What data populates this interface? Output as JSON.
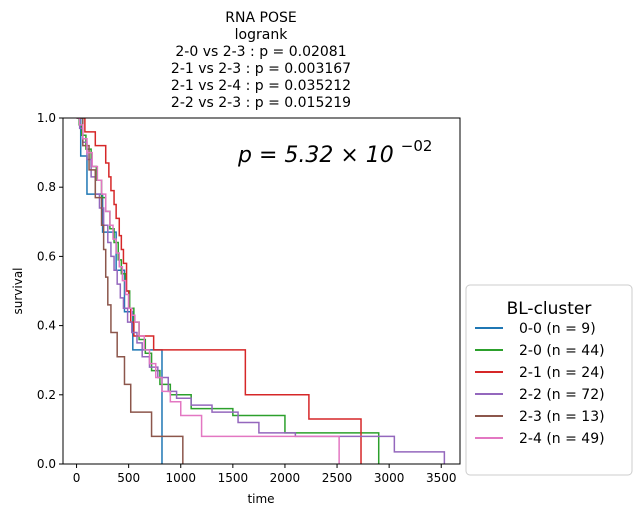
{
  "chart_data": {
    "type": "line",
    "title_lines": [
      "RNA POSE",
      "logrank",
      "2-0 vs 2-3 :  p = 0.02081",
      "2-1 vs 2-3 :  p = 0.003167",
      "2-1 vs 2-4 :  p = 0.035212",
      "2-2 vs 2-3 :  p = 0.015219"
    ],
    "annotation": {
      "base": "p = 5.32 × 10",
      "exponent": "−02"
    },
    "xlabel": "time",
    "ylabel": "survival",
    "xlim": [
      -130,
      3680
    ],
    "ylim": [
      0,
      1
    ],
    "xticks": [
      0,
      500,
      1000,
      1500,
      2000,
      2500,
      3000,
      3500
    ],
    "yticks": [
      0.0,
      0.2,
      0.4,
      0.6,
      0.8,
      1.0
    ],
    "legend": {
      "title": "BL-cluster",
      "placement": "outside right, lower"
    },
    "series": [
      {
        "name": "0-0 (n = 9)",
        "color": "#1f77b4",
        "steps": [
          [
            0,
            1.0
          ],
          [
            40,
            0.89
          ],
          [
            100,
            0.78
          ],
          [
            250,
            0.67
          ],
          [
            380,
            0.56
          ],
          [
            460,
            0.44
          ],
          [
            540,
            0.33
          ],
          [
            820,
            0.0
          ]
        ]
      },
      {
        "name": "2-0 (n = 44)",
        "color": "#2ca02c",
        "steps": [
          [
            0,
            1.0
          ],
          [
            25,
            0.98
          ],
          [
            50,
            0.95
          ],
          [
            90,
            0.91
          ],
          [
            140,
            0.86
          ],
          [
            190,
            0.82
          ],
          [
            240,
            0.77
          ],
          [
            280,
            0.73
          ],
          [
            320,
            0.68
          ],
          [
            360,
            0.64
          ],
          [
            400,
            0.59
          ],
          [
            430,
            0.55
          ],
          [
            470,
            0.5
          ],
          [
            510,
            0.45
          ],
          [
            550,
            0.41
          ],
          [
            600,
            0.36
          ],
          [
            660,
            0.32
          ],
          [
            720,
            0.27
          ],
          [
            800,
            0.23
          ],
          [
            900,
            0.2
          ],
          [
            1100,
            0.16
          ],
          [
            1500,
            0.14
          ],
          [
            2000,
            0.09
          ],
          [
            2900,
            0.0
          ]
        ]
      },
      {
        "name": "2-1 (n = 24)",
        "color": "#d62728",
        "steps": [
          [
            0,
            1.0
          ],
          [
            80,
            0.96
          ],
          [
            180,
            0.92
          ],
          [
            280,
            0.87
          ],
          [
            310,
            0.83
          ],
          [
            330,
            0.79
          ],
          [
            360,
            0.75
          ],
          [
            380,
            0.71
          ],
          [
            410,
            0.66
          ],
          [
            430,
            0.62
          ],
          [
            450,
            0.58
          ],
          [
            480,
            0.5
          ],
          [
            500,
            0.45
          ],
          [
            520,
            0.41
          ],
          [
            550,
            0.37
          ],
          [
            740,
            0.33
          ],
          [
            1620,
            0.2
          ],
          [
            2230,
            0.13
          ],
          [
            2730,
            0.0
          ]
        ]
      },
      {
        "name": "2-2 (n = 72)",
        "color": "#9467bd",
        "steps": [
          [
            0,
            1.0
          ],
          [
            30,
            0.97
          ],
          [
            60,
            0.93
          ],
          [
            100,
            0.88
          ],
          [
            140,
            0.83
          ],
          [
            180,
            0.78
          ],
          [
            220,
            0.74
          ],
          [
            260,
            0.69
          ],
          [
            300,
            0.64
          ],
          [
            330,
            0.6
          ],
          [
            360,
            0.56
          ],
          [
            390,
            0.52
          ],
          [
            420,
            0.48
          ],
          [
            450,
            0.45
          ],
          [
            490,
            0.41
          ],
          [
            530,
            0.38
          ],
          [
            580,
            0.35
          ],
          [
            630,
            0.31
          ],
          [
            700,
            0.28
          ],
          [
            780,
            0.25
          ],
          [
            880,
            0.21
          ],
          [
            960,
            0.19
          ],
          [
            1100,
            0.17
          ],
          [
            1300,
            0.15
          ],
          [
            1550,
            0.12
          ],
          [
            1750,
            0.09
          ],
          [
            2100,
            0.08
          ],
          [
            3050,
            0.035
          ],
          [
            3530,
            0.0
          ]
        ]
      },
      {
        "name": "2-3 (n = 13)",
        "color": "#8c564b",
        "steps": [
          [
            0,
            1.0
          ],
          [
            60,
            0.92
          ],
          [
            120,
            0.85
          ],
          [
            180,
            0.77
          ],
          [
            240,
            0.69
          ],
          [
            260,
            0.62
          ],
          [
            280,
            0.54
          ],
          [
            300,
            0.46
          ],
          [
            330,
            0.38
          ],
          [
            390,
            0.31
          ],
          [
            460,
            0.23
          ],
          [
            520,
            0.15
          ],
          [
            720,
            0.08
          ],
          [
            1020,
            0.0
          ]
        ]
      },
      {
        "name": "2-4 (n = 49)",
        "color": "#e377c2",
        "steps": [
          [
            0,
            1.0
          ],
          [
            30,
            0.98
          ],
          [
            60,
            0.94
          ],
          [
            100,
            0.9
          ],
          [
            150,
            0.86
          ],
          [
            200,
            0.82
          ],
          [
            240,
            0.78
          ],
          [
            280,
            0.73
          ],
          [
            320,
            0.69
          ],
          [
            350,
            0.65
          ],
          [
            380,
            0.61
          ],
          [
            410,
            0.57
          ],
          [
            440,
            0.53
          ],
          [
            470,
            0.49
          ],
          [
            500,
            0.45
          ],
          [
            530,
            0.43
          ],
          [
            560,
            0.41
          ],
          [
            600,
            0.37
          ],
          [
            650,
            0.33
          ],
          [
            700,
            0.29
          ],
          [
            760,
            0.25
          ],
          [
            820,
            0.21
          ],
          [
            900,
            0.18
          ],
          [
            1000,
            0.14
          ],
          [
            1200,
            0.08
          ],
          [
            2520,
            0.0
          ]
        ]
      }
    ]
  }
}
